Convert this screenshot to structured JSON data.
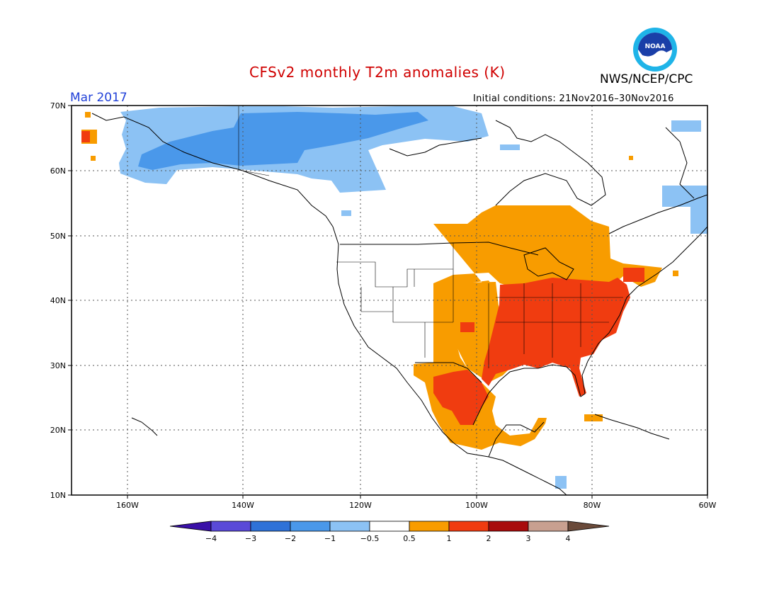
{
  "header": {
    "title": "CFSv2 monthly T2m anomalies (K)",
    "month": "Mar 2017",
    "initial_conditions": "Initial conditions: 21Nov2016–30Nov2016",
    "agency": "NWS/NCEP/CPC",
    "logo_text": "NOAA"
  },
  "map": {
    "lat_labels": [
      "70N",
      "60N",
      "50N",
      "40N",
      "30N",
      "20N",
      "10N"
    ],
    "lon_labels": [
      "160W",
      "140W",
      "120W",
      "100W",
      "80W",
      "60W"
    ],
    "grid_lines": "dotted",
    "extent": {
      "lon": [
        -172,
        -60
      ],
      "lat": [
        10,
        70
      ]
    }
  },
  "legend": {
    "labels": [
      "−4",
      "−3",
      "−2",
      "−1",
      "−0.5",
      "0.5",
      "1",
      "2",
      "3",
      "4"
    ],
    "colors": [
      "#3a10a8",
      "#5a4ad8",
      "#2f72d8",
      "#4a98ea",
      "#8cc2f4",
      "#ffffff",
      "#f89c00",
      "#f03c10",
      "#a80c0c",
      "#c8a090",
      "#6a4a3a"
    ]
  },
  "chart_data": {
    "type": "heatmap",
    "title": "CFSv2 monthly T2m anomalies (K)",
    "valid_month": "Mar 2017",
    "units": "K",
    "color_scale_bins": [
      -4,
      -3,
      -2,
      -1,
      -0.5,
      0.5,
      1,
      2,
      3,
      4
    ],
    "regions": [
      {
        "region": "Alaska and northwestern Canada",
        "anomaly_range": [
          -2,
          -0.5
        ]
      },
      {
        "region": "Interior Alaska / Yukon core",
        "anomaly_range": [
          -2,
          -1
        ]
      },
      {
        "region": "Western United States",
        "anomaly_range": [
          -0.5,
          0.5
        ]
      },
      {
        "region": "Southern and central Plains, Great Lakes, southern Canada",
        "anomaly_range": [
          0.5,
          1
        ]
      },
      {
        "region": "Southeastern and eastern United States",
        "anomaly_range": [
          1,
          2
        ]
      },
      {
        "region": "Northern Mexico",
        "anomaly_range": [
          1,
          2
        ]
      },
      {
        "region": "Southern Mexico",
        "anomaly_range": [
          0.5,
          1
        ]
      }
    ]
  }
}
